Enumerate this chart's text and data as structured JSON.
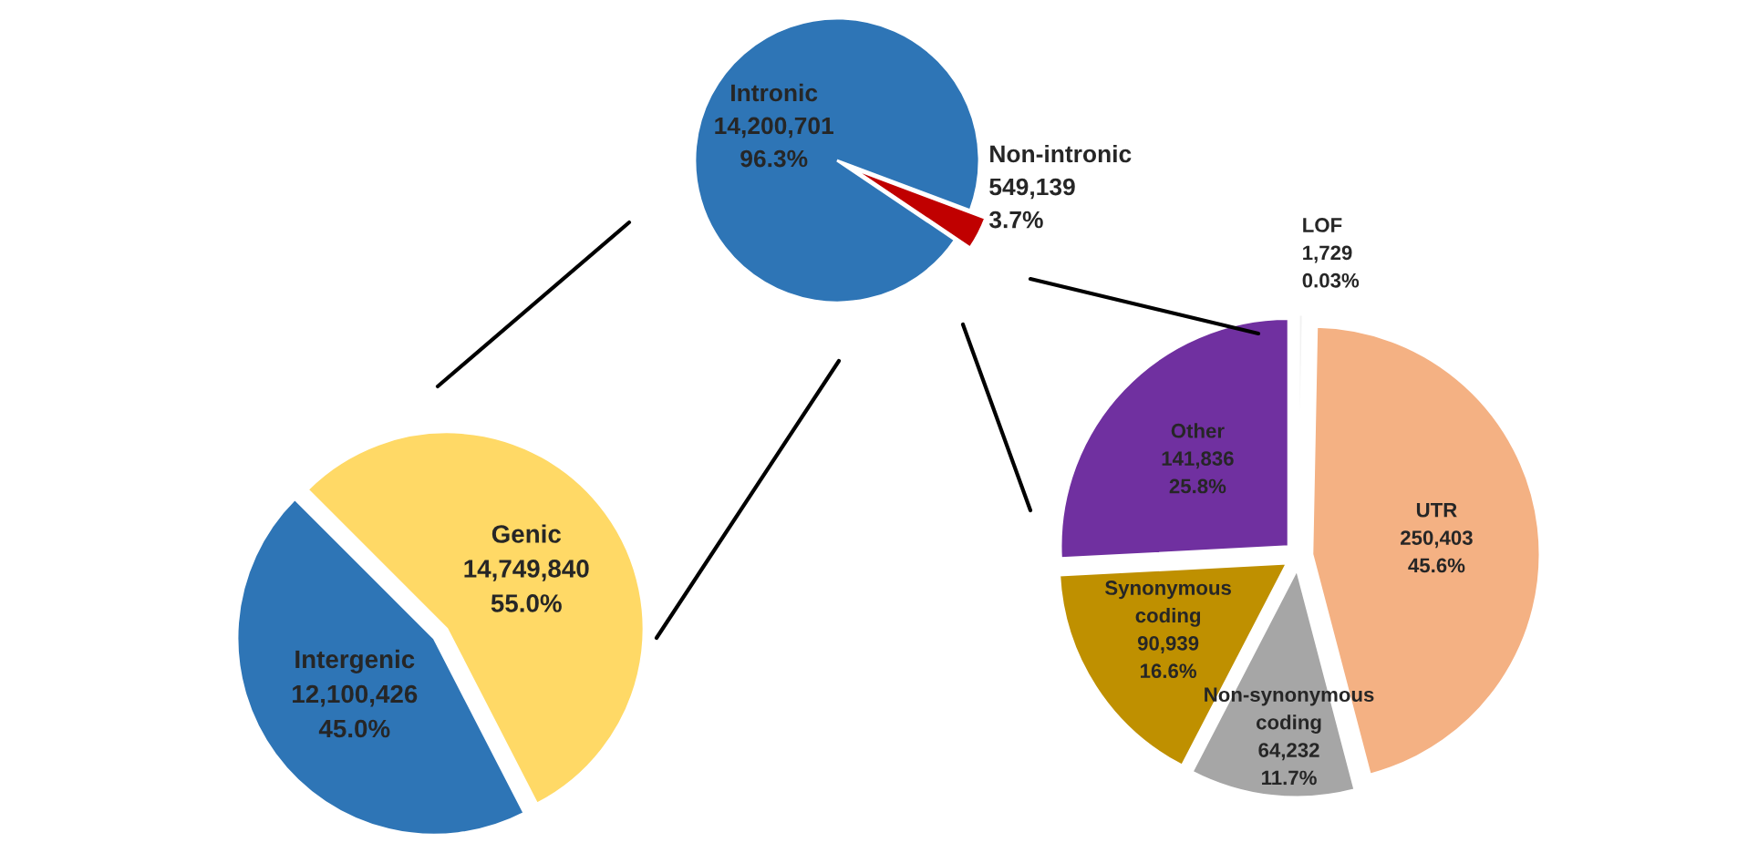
{
  "chart_data": [
    {
      "type": "pie",
      "categories": [
        "Non-intronic",
        "Intronic"
      ],
      "values": [
        549139,
        14200701
      ],
      "colors": [
        "#c00000",
        "#2e75b6"
      ],
      "value_labels": [
        "549,139\n3.7%",
        "14,200,701\n96.3%"
      ]
    },
    {
      "type": "pie",
      "categories": [
        "Genic",
        "Intergenic"
      ],
      "values": [
        14749840,
        12100426
      ],
      "colors": [
        "#ffd966",
        "#2e75b6"
      ],
      "value_labels": [
        "14,749,840\n55.0%",
        "12,100,426\n45.0%"
      ]
    },
    {
      "type": "pie",
      "categories": [
        "LOF",
        "UTR",
        "Non-synonymous\ncoding",
        "Synonymous\ncoding",
        "Other"
      ],
      "values": [
        1729,
        250403,
        64232,
        90939,
        141836
      ],
      "colors": [
        "#f2f2f2",
        "#f4b183",
        "#a6a6a6",
        "#bf9000",
        "#7030a0"
      ],
      "value_labels": [
        "1,729\n0.03%",
        "250,403\n45.6%",
        "64,232\n11.7%",
        "90,939\n16.6%",
        "141,836\n25.8%"
      ]
    }
  ]
}
